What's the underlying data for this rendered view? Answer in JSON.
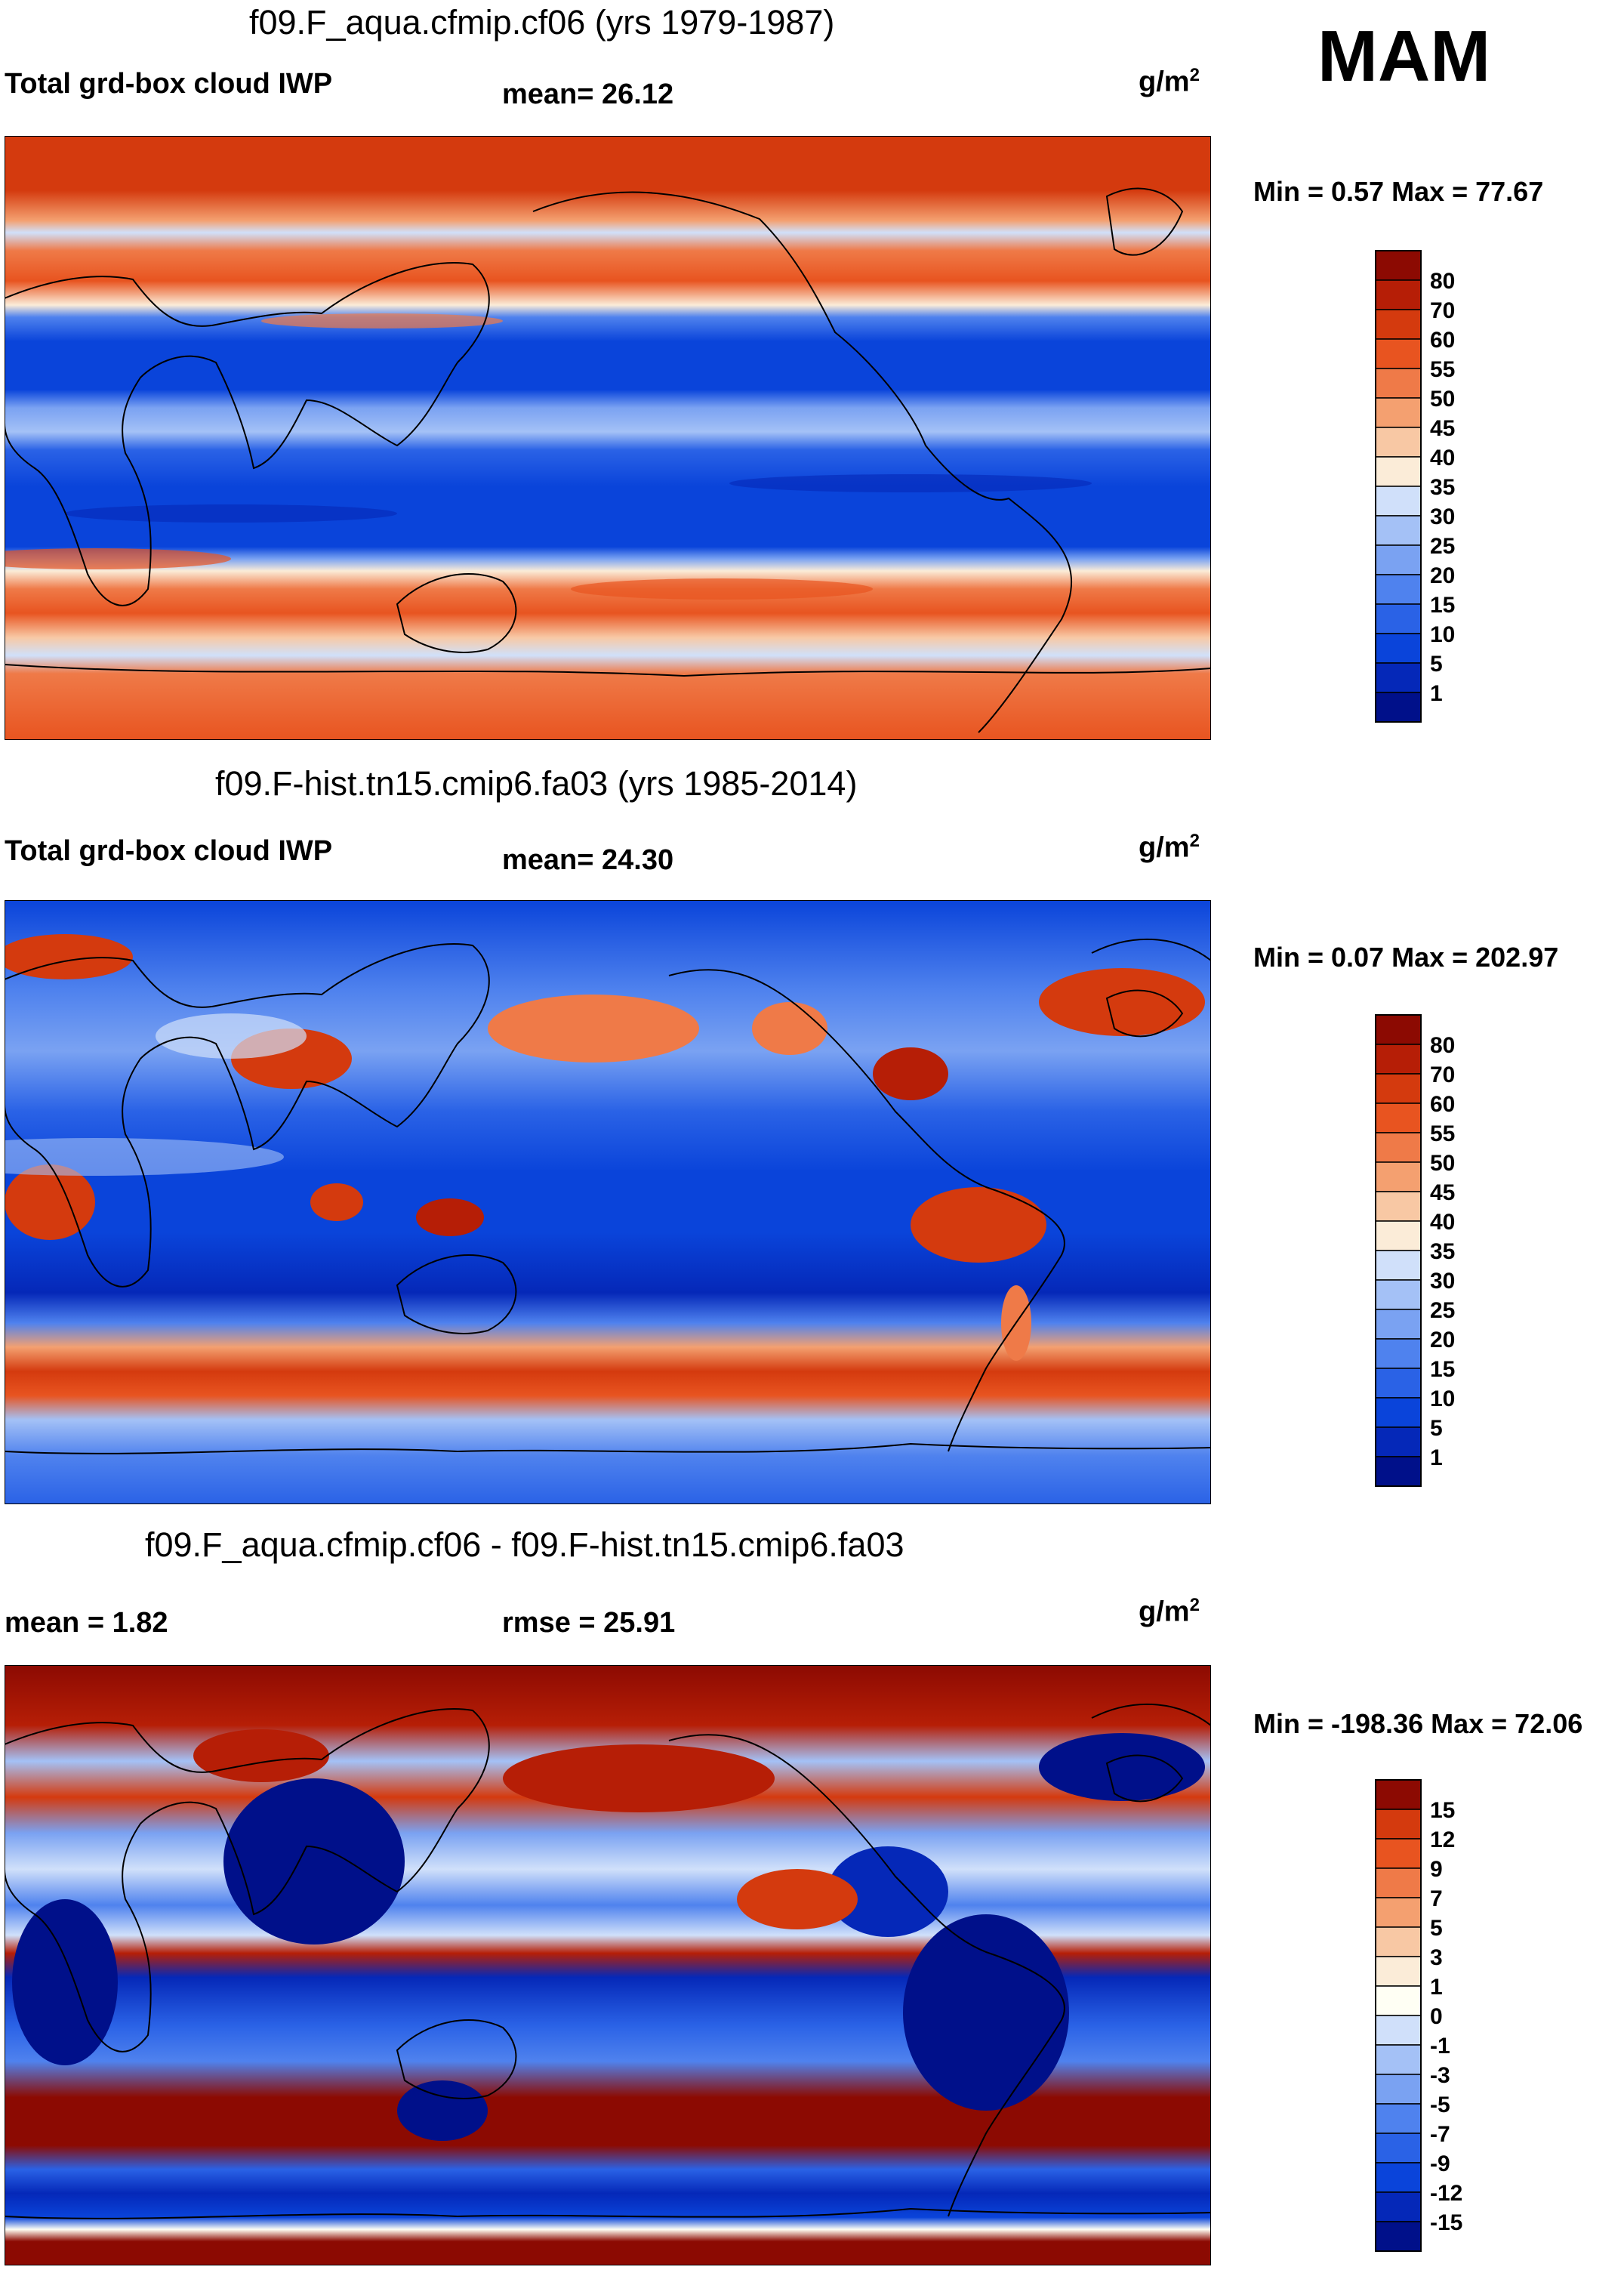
{
  "season": "MAM",
  "unit_base": "g/m",
  "unit_exp": "2",
  "panels": [
    {
      "title": "f09.F_aqua.cfmip.cf06 (yrs 1979-1987)",
      "variable": "Total grd-box cloud IWP",
      "stat": "mean=  26.12",
      "minmax": "Min =   0.57 Max =  77.67",
      "colorbar_labels": [
        "80",
        "70",
        "60",
        "55",
        "50",
        "45",
        "40",
        "35",
        "30",
        "25",
        "20",
        "15",
        "10",
        "5",
        "1"
      ]
    },
    {
      "title": "f09.F-hist.tn15.cmip6.fa03 (yrs 1985-2014)",
      "variable": "Total grd-box cloud IWP",
      "stat": "mean=  24.30",
      "minmax": "Min =   0.07 Max = 202.97",
      "colorbar_labels": [
        "80",
        "70",
        "60",
        "55",
        "50",
        "45",
        "40",
        "35",
        "30",
        "25",
        "20",
        "15",
        "10",
        "5",
        "1"
      ]
    },
    {
      "title": "f09.F_aqua.cfmip.cf06 - f09.F-hist.tn15.cmip6.fa03",
      "variable": "mean =    1.82",
      "stat": "rmse =   25.91",
      "minmax": "Min = -198.36 Max =  72.06",
      "colorbar_labels": [
        "15",
        "12",
        "9",
        "7",
        "5",
        "3",
        "1",
        "0",
        "-1",
        "-3",
        "-5",
        "-7",
        "-9",
        "-12",
        "-15"
      ]
    }
  ],
  "palette": {
    "abs": [
      "#00108a",
      "#0528b8",
      "#0a44da",
      "#2a62e6",
      "#4f82ee",
      "#7aa2f2",
      "#a4c1f6",
      "#d0e0fa",
      "#fbecd8",
      "#f8c8a4",
      "#f4a070",
      "#ef7a48",
      "#e85420",
      "#d43a0e",
      "#b61e06",
      "#8c0a02"
    ],
    "diff": [
      "#00108a",
      "#0528b8",
      "#0a44da",
      "#2a62e6",
      "#4f82ee",
      "#7aa2f2",
      "#a4c1f6",
      "#d0e0fa",
      "#fffff4",
      "#fbecd8",
      "#f8c8a4",
      "#f4a070",
      "#ef7a48",
      "#e85420",
      "#d43a0e",
      "#8c0a02"
    ]
  }
}
